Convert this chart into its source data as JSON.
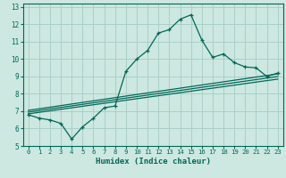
{
  "xlabel": "Humidex (Indice chaleur)",
  "background_color": "#cce8e0",
  "grid_color": "#aacfc8",
  "line_color": "#006858",
  "xlim": [
    -0.5,
    23.5
  ],
  "ylim": [
    5,
    13.2
  ],
  "xticks": [
    0,
    1,
    2,
    3,
    4,
    5,
    6,
    7,
    8,
    9,
    10,
    11,
    12,
    13,
    14,
    15,
    16,
    17,
    18,
    19,
    20,
    21,
    22,
    23
  ],
  "yticks": [
    5,
    6,
    7,
    8,
    9,
    10,
    11,
    12,
    13
  ],
  "curve1_x": [
    0,
    1,
    2,
    3,
    4,
    5,
    6,
    7,
    8,
    9,
    10,
    11,
    12,
    13,
    14,
    15,
    16,
    17,
    18,
    19,
    20,
    21,
    22,
    23
  ],
  "curve1_y": [
    6.8,
    6.6,
    6.5,
    6.3,
    5.4,
    6.1,
    6.6,
    7.2,
    7.3,
    9.3,
    10.0,
    10.5,
    11.5,
    11.7,
    12.3,
    12.55,
    11.1,
    10.1,
    10.3,
    9.8,
    9.55,
    9.5,
    9.0,
    9.2
  ],
  "line2_x": [
    0,
    23
  ],
  "line2_y": [
    6.85,
    8.85
  ],
  "line3_x": [
    0,
    23
  ],
  "line3_y": [
    6.95,
    9.0
  ],
  "line4_x": [
    0,
    23
  ],
  "line4_y": [
    7.05,
    9.15
  ]
}
